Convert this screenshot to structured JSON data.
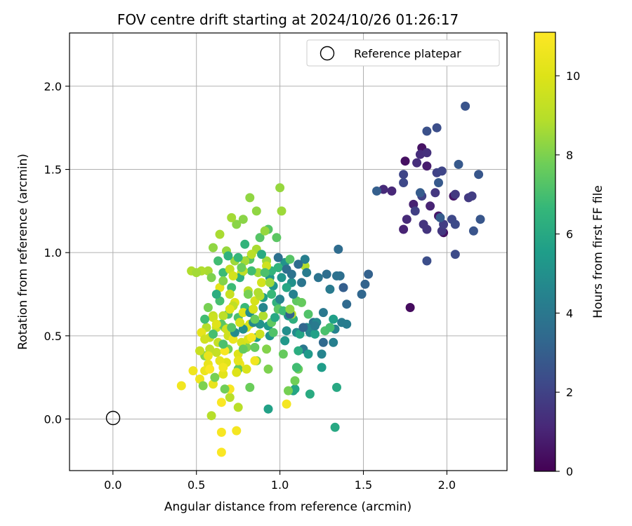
{
  "chart_data": {
    "type": "scatter",
    "title": "FOV centre drift starting at 2024/10/26 01:26:17",
    "xlabel": "Angular distance from reference (arcmin)",
    "ylabel": "Rotation from reference (arcmin)",
    "xlim": [
      -0.26,
      2.36
    ],
    "ylim": [
      -0.31,
      2.32
    ],
    "xticks": [
      "0.0",
      "0.5",
      "1.0",
      "1.5",
      "2.0"
    ],
    "xtick_values": [
      0,
      0.5,
      1.0,
      1.5,
      2.0
    ],
    "yticks": [
      "0.0",
      "0.5",
      "1.0",
      "1.5",
      "2.0"
    ],
    "ytick_values": [
      0,
      0.5,
      1.0,
      1.5,
      2.0
    ],
    "grid": true,
    "legend": {
      "position": "top-right",
      "entries": [
        "Reference platepar"
      ]
    },
    "colorbar": {
      "label": "Hours from first FF file",
      "range": [
        0,
        11.1
      ],
      "ticks": [
        "0",
        "2",
        "4",
        "6",
        "8",
        "10"
      ],
      "tick_values": [
        0,
        2,
        4,
        6,
        8,
        10
      ],
      "colormap": "viridis"
    },
    "reference_point": {
      "x": 0.0,
      "y": 0.0
    },
    "points": [
      [
        1.78,
        0.67,
        0.3
      ],
      [
        1.75,
        1.55,
        0.4
      ],
      [
        1.85,
        1.63,
        0.5
      ],
      [
        1.95,
        1.22,
        0.6
      ],
      [
        1.98,
        1.12,
        0.5
      ],
      [
        2.04,
        1.34,
        0.6
      ],
      [
        1.88,
        1.52,
        0.8
      ],
      [
        1.8,
        1.29,
        0.9
      ],
      [
        1.74,
        1.14,
        1.0
      ],
      [
        1.9,
        1.28,
        1.0
      ],
      [
        1.67,
        1.37,
        1.1
      ],
      [
        1.62,
        1.38,
        1.2
      ],
      [
        1.76,
        1.2,
        1.2
      ],
      [
        1.82,
        1.54,
        1.3
      ],
      [
        1.84,
        1.59,
        1.3
      ],
      [
        1.88,
        1.6,
        1.4
      ],
      [
        1.86,
        1.17,
        1.5
      ],
      [
        1.88,
        1.14,
        1.5
      ],
      [
        1.93,
        1.36,
        1.6
      ],
      [
        1.97,
        1.13,
        1.6
      ],
      [
        2.05,
        1.35,
        1.7
      ],
      [
        2.13,
        1.33,
        1.7
      ],
      [
        2.15,
        1.34,
        1.8
      ],
      [
        1.98,
        1.17,
        1.8
      ],
      [
        1.81,
        1.25,
        1.9
      ],
      [
        1.85,
        1.34,
        2.0
      ],
      [
        1.94,
        1.48,
        2.0
      ],
      [
        1.97,
        1.49,
        2.1
      ],
      [
        1.74,
        1.47,
        2.1
      ],
      [
        1.74,
        1.42,
        2.2
      ],
      [
        2.03,
        1.2,
        2.2
      ],
      [
        2.05,
        1.17,
        2.3
      ],
      [
        2.05,
        0.99,
        2.3
      ],
      [
        1.88,
        0.95,
        2.4
      ],
      [
        1.94,
        1.75,
        2.4
      ],
      [
        1.88,
        1.73,
        2.5
      ],
      [
        2.11,
        1.88,
        2.6
      ],
      [
        2.16,
        1.13,
        2.6
      ],
      [
        2.19,
        1.47,
        2.7
      ],
      [
        2.2,
        1.2,
        2.7
      ],
      [
        2.07,
        1.53,
        2.8
      ],
      [
        1.95,
        1.42,
        2.8
      ],
      [
        1.96,
        1.21,
        2.9
      ],
      [
        1.84,
        1.36,
        2.9
      ],
      [
        1.58,
        1.37,
        3.0
      ],
      [
        1.38,
        0.79,
        3.0
      ],
      [
        1.53,
        0.87,
        3.1
      ],
      [
        1.51,
        0.81,
        3.2
      ],
      [
        1.49,
        0.75,
        3.3
      ],
      [
        1.4,
        0.69,
        3.4
      ],
      [
        1.35,
        1.02,
        3.5
      ],
      [
        1.36,
        0.86,
        3.6
      ],
      [
        1.28,
        0.87,
        3.6
      ],
      [
        1.34,
        0.86,
        3.7
      ],
      [
        1.23,
        0.85,
        3.8
      ],
      [
        1.2,
        0.58,
        3.9
      ],
      [
        1.14,
        0.42,
        4.0
      ],
      [
        1.3,
        0.78,
        4.1
      ],
      [
        1.37,
        0.58,
        4.2
      ],
      [
        1.4,
        0.57,
        4.2
      ],
      [
        1.32,
        0.46,
        4.3
      ],
      [
        1.33,
        0.54,
        4.4
      ],
      [
        1.25,
        0.39,
        4.5
      ],
      [
        1.22,
        0.58,
        4.6
      ],
      [
        1.18,
        0.52,
        4.6
      ],
      [
        1.16,
        0.55,
        4.7
      ],
      [
        1.1,
        0.52,
        4.8
      ],
      [
        1.04,
        0.53,
        4.9
      ],
      [
        1.05,
        0.62,
        5.0
      ],
      [
        1.07,
        0.82,
        5.0
      ],
      [
        1.03,
        0.94,
        5.1
      ],
      [
        1.01,
        0.85,
        5.2
      ],
      [
        0.96,
        0.8,
        5.2
      ],
      [
        0.94,
        0.85,
        5.3
      ],
      [
        0.93,
        0.56,
        5.4
      ],
      [
        0.86,
        0.49,
        5.5
      ],
      [
        0.9,
        0.73,
        5.6
      ],
      [
        0.93,
        0.06,
        5.7
      ],
      [
        1.08,
        0.17,
        5.8
      ],
      [
        1.09,
        0.18,
        5.9
      ],
      [
        1.34,
        0.19,
        6.0
      ],
      [
        1.33,
        -0.05,
        6.0
      ],
      [
        1.18,
        0.15,
        6.1
      ],
      [
        1.11,
        0.41,
        6.2
      ],
      [
        1.08,
        0.6,
        6.3
      ],
      [
        0.98,
        0.7,
        6.4
      ],
      [
        0.99,
        0.91,
        6.5
      ],
      [
        0.95,
        0.89,
        6.5
      ],
      [
        0.84,
        0.66,
        6.6
      ],
      [
        0.79,
        0.67,
        6.7
      ],
      [
        0.71,
        0.79,
        6.8
      ],
      [
        0.66,
        0.88,
        6.8
      ],
      [
        0.63,
        0.95,
        6.9
      ],
      [
        0.64,
        0.71,
        7.0
      ],
      [
        0.69,
        0.63,
        7.1
      ],
      [
        0.75,
        0.61,
        7.1
      ],
      [
        0.82,
        0.96,
        7.2
      ],
      [
        0.88,
        1.09,
        7.3
      ],
      [
        0.93,
        1.14,
        7.3
      ],
      [
        0.98,
        1.09,
        7.4
      ],
      [
        1.1,
        0.71,
        7.5
      ],
      [
        1.13,
        0.7,
        7.6
      ],
      [
        1.02,
        0.39,
        7.6
      ],
      [
        1.11,
        0.3,
        7.7
      ],
      [
        1.09,
        0.23,
        7.8
      ],
      [
        1.05,
        0.17,
        7.9
      ],
      [
        0.93,
        0.3,
        8.0
      ],
      [
        0.86,
        0.35,
        8.0
      ],
      [
        0.8,
        0.43,
        8.1
      ],
      [
        0.74,
        1.17,
        8.2
      ],
      [
        0.78,
        1.2,
        8.2
      ],
      [
        0.82,
        1.33,
        8.3
      ],
      [
        0.86,
        1.25,
        8.3
      ],
      [
        0.91,
        1.13,
        8.4
      ],
      [
        1.0,
        1.39,
        8.4
      ],
      [
        1.01,
        1.25,
        8.5
      ],
      [
        0.92,
        0.95,
        8.5
      ],
      [
        0.87,
        0.88,
        8.6
      ],
      [
        0.71,
        1.21,
        8.6
      ],
      [
        0.64,
        1.11,
        8.7
      ],
      [
        0.57,
        0.89,
        8.7
      ],
      [
        0.53,
        0.89,
        8.8
      ],
      [
        0.47,
        0.89,
        8.8
      ],
      [
        0.56,
        0.55,
        8.9
      ],
      [
        0.59,
        0.02,
        8.9
      ],
      [
        0.7,
        0.13,
        9.0
      ],
      [
        0.75,
        0.07,
        9.0
      ],
      [
        0.66,
        0.62,
        9.1
      ],
      [
        0.6,
        0.62,
        9.2
      ],
      [
        0.62,
        0.4,
        9.3
      ],
      [
        0.58,
        0.49,
        9.4
      ],
      [
        0.62,
        0.55,
        9.5
      ],
      [
        0.69,
        0.5,
        9.6
      ],
      [
        0.77,
        0.46,
        9.7
      ],
      [
        0.8,
        0.55,
        9.8
      ],
      [
        0.81,
        0.48,
        9.9
      ],
      [
        0.75,
        0.39,
        10.0
      ],
      [
        0.68,
        0.34,
        10.1
      ],
      [
        0.66,
        0.27,
        10.2
      ],
      [
        0.64,
        0.35,
        10.3
      ],
      [
        0.6,
        0.21,
        10.4
      ],
      [
        0.55,
        0.29,
        10.5
      ],
      [
        0.52,
        0.24,
        10.6
      ],
      [
        0.41,
        0.2,
        10.7
      ],
      [
        0.74,
        -0.07,
        10.8
      ],
      [
        0.65,
        -0.08,
        10.9
      ],
      [
        0.65,
        -0.2,
        11.0
      ],
      [
        0.65,
        0.1,
        11.0
      ],
      [
        0.7,
        0.18,
        10.9
      ],
      [
        1.04,
        0.09,
        10.8
      ],
      [
        0.85,
        0.35,
        10.7
      ],
      [
        0.76,
        0.33,
        10.6
      ],
      [
        0.72,
        0.48,
        10.5
      ],
      [
        0.57,
        0.33,
        10.4
      ],
      [
        0.53,
        0.52,
        10.3
      ],
      [
        0.64,
        0.79,
        10.2
      ],
      [
        0.73,
        0.7,
        10.1
      ],
      [
        0.78,
        0.64,
        10.0
      ],
      [
        0.82,
        0.57,
        9.9
      ],
      [
        0.85,
        0.71,
        9.8
      ],
      [
        0.89,
        0.82,
        9.7
      ],
      [
        0.92,
        0.92,
        9.6
      ],
      [
        0.88,
        0.51,
        9.5
      ],
      [
        0.77,
        0.88,
        9.4
      ],
      [
        0.7,
        0.9,
        9.3
      ],
      [
        0.58,
        0.42,
        9.2
      ],
      [
        0.81,
        0.77,
        9.1
      ],
      [
        1.07,
        0.63,
        9.0
      ],
      [
        1.15,
        0.92,
        8.9
      ],
      [
        0.9,
        0.62,
        8.8
      ],
      [
        0.86,
        1.02,
        8.7
      ],
      [
        0.79,
        0.95,
        8.6
      ],
      [
        0.73,
        0.95,
        8.5
      ],
      [
        0.68,
        1.01,
        8.4
      ],
      [
        0.6,
        1.03,
        8.3
      ],
      [
        0.67,
        0.55,
        8.2
      ],
      [
        0.55,
        0.38,
        8.1
      ],
      [
        0.54,
        0.2,
        8.0
      ],
      [
        0.61,
        0.25,
        7.9
      ],
      [
        0.67,
        0.18,
        7.8
      ],
      [
        0.82,
        0.19,
        7.7
      ],
      [
        0.85,
        0.43,
        7.6
      ],
      [
        0.95,
        0.58,
        7.5
      ],
      [
        0.99,
        0.66,
        7.4
      ],
      [
        1.06,
        0.96,
        7.3
      ],
      [
        1.17,
        0.63,
        7.2
      ],
      [
        1.27,
        0.53,
        7.1
      ],
      [
        1.3,
        0.55,
        7.0
      ],
      [
        1.1,
        0.31,
        6.9
      ],
      [
        1.02,
        0.65,
        6.8
      ],
      [
        0.95,
        0.75,
        6.7
      ],
      [
        0.75,
        0.97,
        6.6
      ],
      [
        0.79,
        1.05,
        6.5
      ],
      [
        0.69,
        0.98,
        6.4
      ],
      [
        0.76,
        0.85,
        6.3
      ],
      [
        0.62,
        0.75,
        6.2
      ],
      [
        0.89,
        0.99,
        6.1
      ],
      [
        0.97,
        0.61,
        6.0
      ],
      [
        1.04,
        0.79,
        5.9
      ],
      [
        1.12,
        0.51,
        5.8
      ],
      [
        1.21,
        0.51,
        5.7
      ],
      [
        1.32,
        0.6,
        5.6
      ],
      [
        1.25,
        0.31,
        5.5
      ],
      [
        1.17,
        0.39,
        5.4
      ],
      [
        1.03,
        0.47,
        5.3
      ],
      [
        0.94,
        0.5,
        5.2
      ],
      [
        0.88,
        0.57,
        5.1
      ],
      [
        0.82,
        0.64,
        5.0
      ],
      [
        0.78,
        0.54,
        4.9
      ],
      [
        0.73,
        0.52,
        4.8
      ],
      [
        0.84,
        0.58,
        4.7
      ],
      [
        0.9,
        0.67,
        4.6
      ],
      [
        1.0,
        0.72,
        4.5
      ],
      [
        1.08,
        0.75,
        4.4
      ],
      [
        1.15,
        0.96,
        4.3
      ],
      [
        1.16,
        0.88,
        4.2
      ],
      [
        1.21,
        0.56,
        4.1
      ],
      [
        1.26,
        0.64,
        4.0
      ],
      [
        1.13,
        0.82,
        3.9
      ],
      [
        1.07,
        0.87,
        3.8
      ],
      [
        0.99,
        0.97,
        3.7
      ],
      [
        1.04,
        0.9,
        3.6
      ],
      [
        1.11,
        0.93,
        3.5
      ],
      [
        1.26,
        0.46,
        3.4
      ],
      [
        1.14,
        0.55,
        3.3
      ],
      [
        1.06,
        0.63,
        3.2
      ],
      [
        0.83,
        0.89,
        6.9
      ],
      [
        0.91,
        0.88,
        7.1
      ],
      [
        0.96,
        0.52,
        7.2
      ],
      [
        0.65,
        0.57,
        7.4
      ],
      [
        0.75,
        0.3,
        7.5
      ],
      [
        0.78,
        0.42,
        7.6
      ],
      [
        0.85,
        0.6,
        7.7
      ],
      [
        0.69,
        0.42,
        7.8
      ],
      [
        0.57,
        0.67,
        7.9
      ],
      [
        0.59,
        0.85,
        8.0
      ],
      [
        0.66,
        0.83,
        8.1
      ],
      [
        0.88,
        0.74,
        8.9
      ],
      [
        0.83,
        0.99,
        9.0
      ],
      [
        0.78,
        0.89,
        9.1
      ],
      [
        0.72,
        0.68,
        9.2
      ],
      [
        0.63,
        0.46,
        9.3
      ],
      [
        0.52,
        0.41,
        9.4
      ],
      [
        0.6,
        0.61,
        9.5
      ],
      [
        0.68,
        0.54,
        9.6
      ],
      [
        0.72,
        0.86,
        9.7
      ],
      [
        0.84,
        0.66,
        9.8
      ],
      [
        0.8,
        0.3,
        9.9
      ],
      [
        0.74,
        0.28,
        10.0
      ],
      [
        0.62,
        0.57,
        10.1
      ],
      [
        0.7,
        0.66,
        10.2
      ],
      [
        0.75,
        0.35,
        10.3
      ],
      [
        0.57,
        0.38,
        10.4
      ],
      [
        0.48,
        0.29,
        10.6
      ],
      [
        0.66,
        0.31,
        10.7
      ],
      [
        0.83,
        0.49,
        10.8
      ],
      [
        0.58,
        0.3,
        11.0
      ],
      [
        0.67,
        0.41,
        10.9
      ],
      [
        0.76,
        0.58,
        9.8
      ],
      [
        0.55,
        0.48,
        9.6
      ],
      [
        0.7,
        0.75,
        9.4
      ],
      [
        0.87,
        0.76,
        8.8
      ],
      [
        0.94,
        0.82,
        8.5
      ],
      [
        1.06,
        0.66,
        8.3
      ],
      [
        0.92,
        0.42,
        8.1
      ],
      [
        0.81,
        0.75,
        7.9
      ],
      [
        0.77,
        0.91,
        7.7
      ],
      [
        0.71,
        0.55,
        7.3
      ],
      [
        0.66,
        0.45,
        7.1
      ],
      [
        0.6,
        0.51,
        7.0
      ],
      [
        0.55,
        0.6,
        6.9
      ],
      [
        0.5,
        0.88,
        8.6
      ]
    ]
  }
}
